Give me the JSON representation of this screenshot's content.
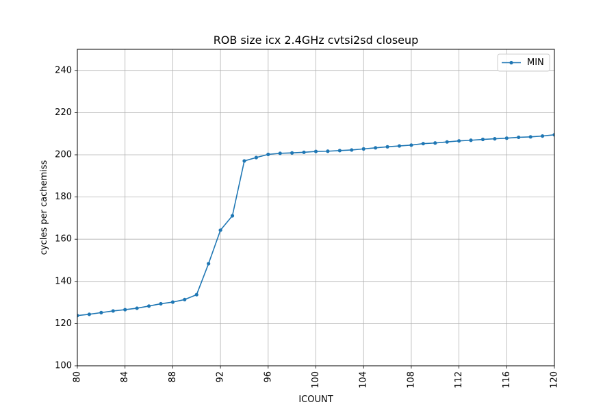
{
  "chart_data": {
    "type": "line",
    "title": "ROB size icx 2.4GHz cvtsi2sd closeup",
    "xlabel": "ICOUNT",
    "ylabel": "cycles per cachemiss",
    "xlim": [
      80,
      120
    ],
    "ylim": [
      100,
      250
    ],
    "xticks": [
      80,
      84,
      88,
      92,
      96,
      100,
      104,
      108,
      112,
      116,
      120
    ],
    "yticks": [
      100,
      120,
      140,
      160,
      180,
      200,
      220,
      240
    ],
    "grid": true,
    "legend": {
      "position": "top-right",
      "entries": [
        "MIN"
      ]
    },
    "series": [
      {
        "name": "MIN",
        "color": "#1f77b4",
        "marker": "dot",
        "x": [
          80,
          81,
          82,
          83,
          84,
          85,
          86,
          87,
          88,
          89,
          90,
          91,
          92,
          93,
          94,
          95,
          96,
          97,
          98,
          99,
          100,
          101,
          102,
          103,
          104,
          105,
          106,
          107,
          108,
          109,
          110,
          111,
          112,
          113,
          114,
          115,
          116,
          117,
          118,
          119,
          120
        ],
        "y": [
          123.8,
          124.4,
          125.2,
          126.0,
          126.6,
          127.3,
          128.3,
          129.4,
          130.2,
          131.4,
          133.7,
          148.4,
          164.3,
          171.1,
          197.1,
          198.7,
          200.2,
          200.7,
          200.9,
          201.2,
          201.6,
          201.7,
          202.0,
          202.3,
          202.8,
          203.3,
          203.8,
          204.2,
          204.6,
          205.3,
          205.6,
          206.1,
          206.6,
          206.9,
          207.3,
          207.6,
          207.9,
          208.3,
          208.5,
          208.9,
          209.5
        ]
      }
    ]
  }
}
